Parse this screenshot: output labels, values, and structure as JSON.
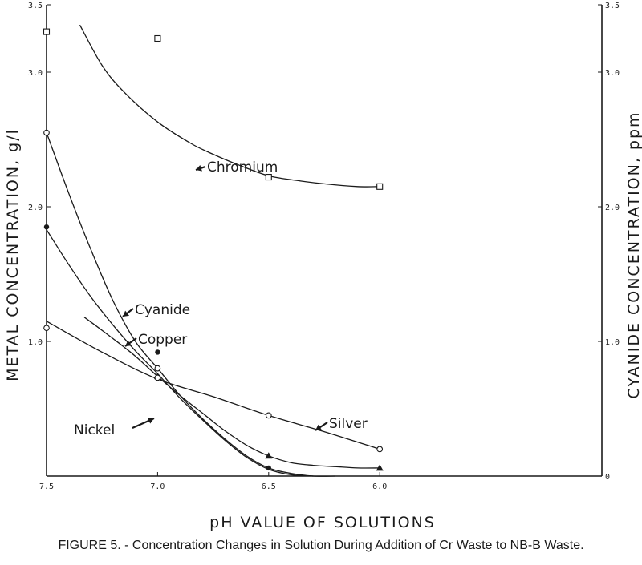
{
  "caption": "FIGURE 5. - Concentration Changes in Solution During Addition of Cr Waste to NB-B Waste.",
  "chart_data": {
    "type": "line",
    "title": "",
    "xlabel": "pH VALUE OF SOLUTIONS",
    "ylabel_left": "METAL CONCENTRATION, g/l",
    "ylabel_right": "CYANIDE CONCENTRATION, ppm",
    "x_reversed": true,
    "xlim": [
      7.5,
      5.0
    ],
    "ylim": [
      0,
      3.5
    ],
    "ylim_right": [
      0,
      3.5
    ],
    "x_ticks": [
      "7.5",
      "7.0",
      "6.5",
      "6.0"
    ],
    "y_ticks_left": [
      "3.5",
      "3.0",
      "2.0",
      "1.0"
    ],
    "y_ticks_right": [
      "3.5",
      "3.0",
      "2.0",
      "1.0",
      "0"
    ],
    "colors": {
      "ink": "#1a1a1a",
      "background": "#ffffff"
    },
    "series": [
      {
        "name": "Chromium",
        "marker": "square",
        "x": [
          7.5,
          7.0,
          6.5,
          6.0
        ],
        "y": [
          3.3,
          3.25,
          2.22,
          2.15
        ],
        "curve_x": [
          7.35,
          7.25,
          7.15,
          7.0,
          6.85,
          6.75,
          6.65,
          6.5,
          6.35,
          6.25,
          6.1,
          6.0
        ],
        "curve_y": [
          3.35,
          3.05,
          2.85,
          2.63,
          2.47,
          2.39,
          2.32,
          2.23,
          2.19,
          2.17,
          2.15,
          2.15
        ]
      },
      {
        "name": "Cyanide",
        "marker": "circle",
        "x": [
          7.5,
          7.0
        ],
        "y": [
          2.55,
          0.8
        ],
        "curve_x": [
          7.5,
          7.4,
          7.3,
          7.2,
          7.1,
          7.0,
          6.9,
          6.8,
          6.7,
          6.6,
          6.5,
          6.4,
          6.3,
          6.2
        ],
        "curve_y": [
          2.55,
          2.1,
          1.68,
          1.3,
          1.0,
          0.8,
          0.6,
          0.43,
          0.28,
          0.15,
          0.06,
          0.02,
          0.0,
          0.0
        ]
      },
      {
        "name": "Copper",
        "marker": "dot",
        "x": [
          7.5,
          7.0,
          6.5
        ],
        "y": [
          1.85,
          0.92,
          0.06
        ],
        "curve_x": [
          7.5,
          7.4,
          7.3,
          7.2,
          7.1,
          7.0,
          6.9,
          6.8,
          6.7,
          6.6,
          6.5,
          6.4,
          6.3
        ],
        "curve_y": [
          1.83,
          1.57,
          1.33,
          1.12,
          0.93,
          0.76,
          0.58,
          0.42,
          0.27,
          0.14,
          0.05,
          0.01,
          0.0
        ]
      },
      {
        "name": "Nickel",
        "marker": "triangle",
        "x": [
          7.0,
          6.5,
          6.0
        ],
        "y": [
          0.74,
          0.15,
          0.06
        ],
        "curve_x": [
          7.33,
          7.2,
          7.1,
          7.0,
          6.9,
          6.8,
          6.7,
          6.6,
          6.5,
          6.4,
          6.3,
          6.2,
          6.1,
          6.0
        ],
        "curve_y": [
          1.18,
          1.02,
          0.89,
          0.74,
          0.6,
          0.47,
          0.34,
          0.23,
          0.15,
          0.1,
          0.08,
          0.07,
          0.06,
          0.06
        ]
      },
      {
        "name": "Silver",
        "marker": "circle",
        "x": [
          7.5,
          7.0,
          6.5,
          6.0
        ],
        "y": [
          1.1,
          0.73,
          0.45,
          0.2
        ],
        "curve_x": [
          7.5,
          7.25,
          7.0,
          6.75,
          6.5,
          6.25,
          6.0
        ],
        "curve_y": [
          1.15,
          0.92,
          0.72,
          0.59,
          0.45,
          0.33,
          0.2
        ]
      }
    ]
  }
}
